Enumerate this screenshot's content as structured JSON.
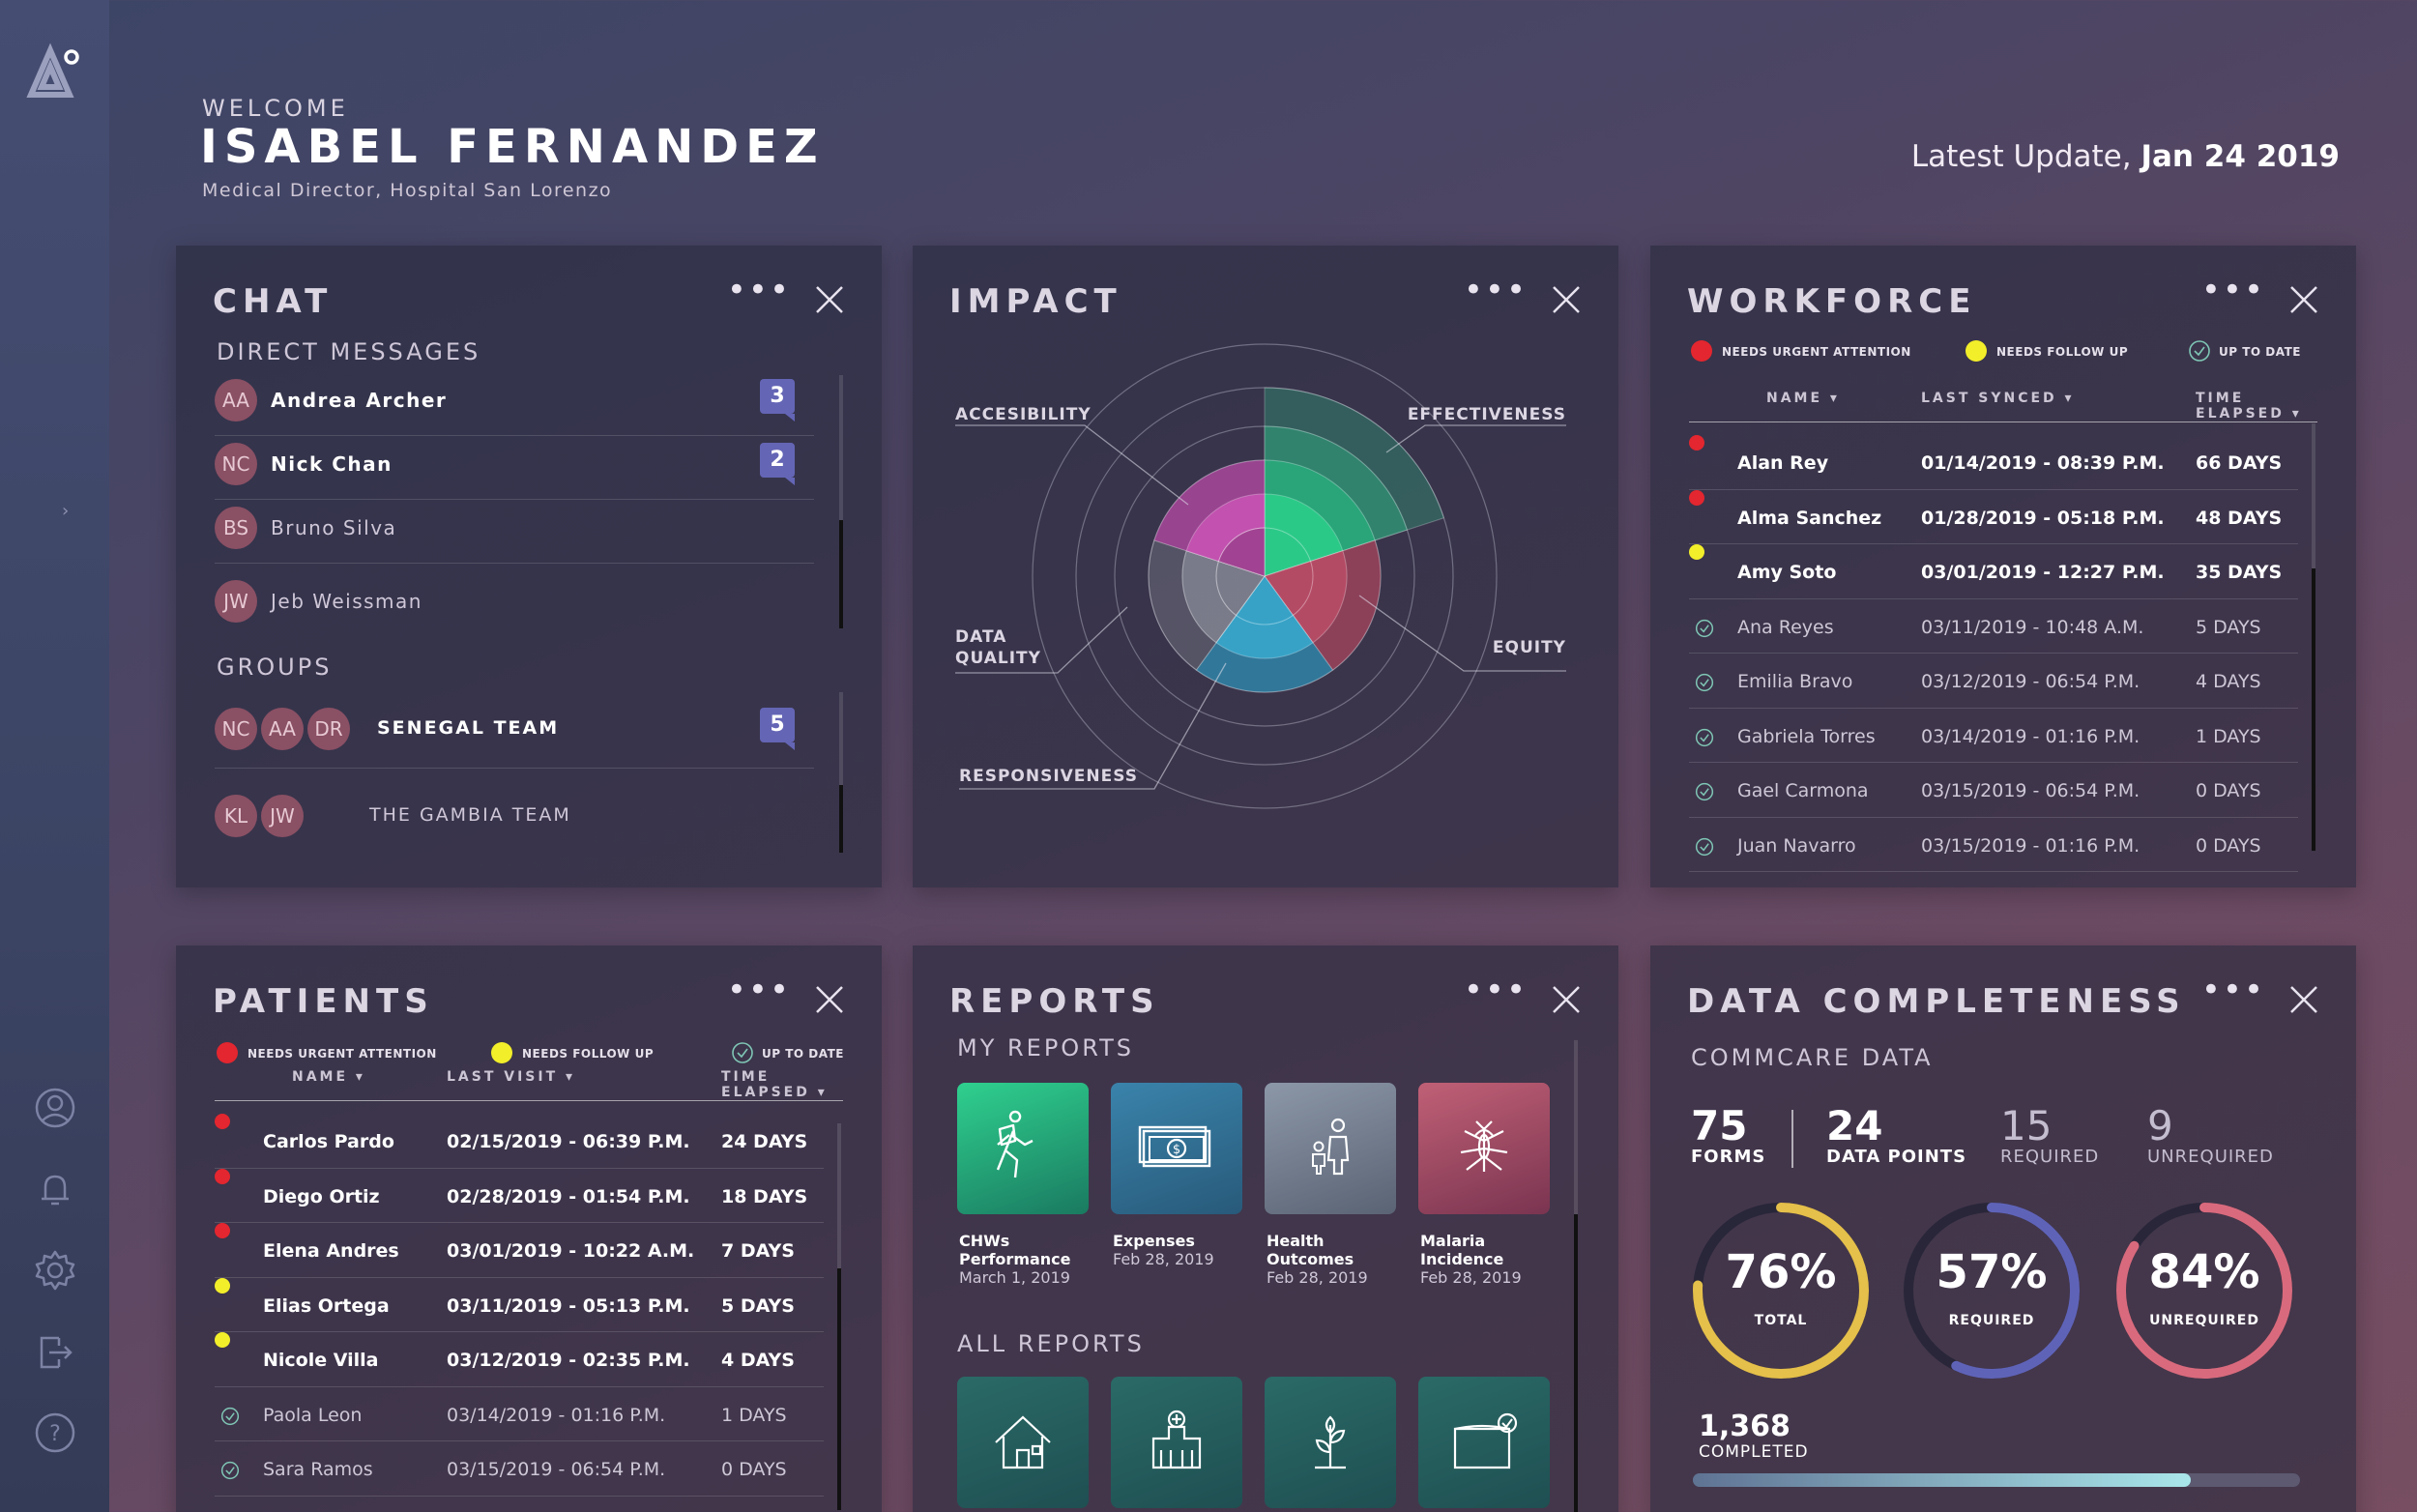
{
  "header": {
    "welcome": "WELCOME",
    "name": "ISABEL FERNANDEZ",
    "role": "Medical Director, Hospital San Lorenzo",
    "update_label": "Latest Update,",
    "update_date": "Jan 24 2019"
  },
  "chat": {
    "title": "CHAT",
    "direct_label": "DIRECT MESSAGES",
    "groups_label": "GROUPS",
    "direct": [
      {
        "initials": "AA",
        "name": "Andrea Archer",
        "badge": "3",
        "unread": true
      },
      {
        "initials": "NC",
        "name": "Nick Chan",
        "badge": "2",
        "unread": true
      },
      {
        "initials": "BS",
        "name": "Bruno Silva",
        "badge": "",
        "unread": false
      },
      {
        "initials": "JW",
        "name": "Jeb Weissman",
        "badge": "",
        "unread": false
      }
    ],
    "groups": [
      {
        "initials": [
          "NC",
          "AA",
          "DR"
        ],
        "name": "SENEGAL TEAM",
        "badge": "5"
      },
      {
        "initials": [
          "KL",
          "JW"
        ],
        "name": "THE GAMBIA TEAM",
        "badge": ""
      }
    ]
  },
  "impact": {
    "title": "IMPACT",
    "labels": {
      "accessibility": "ACCESIBILITY",
      "effectiveness": "EFFECTIVENESS",
      "data_quality_1": "DATA",
      "data_quality_2": "QUALITY",
      "equity": "EQUITY",
      "responsiveness": "RESPONSIVENESS"
    },
    "colors": {
      "effectiveness": "#2fa27c",
      "accessibility": "#b048a0",
      "equity": "#a8465d",
      "responsiveness": "#2f8db3",
      "data_quality": "#8a8f99"
    }
  },
  "workforce": {
    "title": "WORKFORCE",
    "legend": [
      "NEEDS URGENT ATTENTION",
      "NEEDS FOLLOW UP",
      "UP TO DATE"
    ],
    "cols": [
      "NAME ▾",
      "LAST SYNCED ▾",
      "TIME ELAPSED ▾"
    ],
    "rows": [
      {
        "status": "urgent",
        "name": "Alan Rey",
        "date": "01/14/2019 - 08:39 P.M.",
        "elapsed": "66 DAYS"
      },
      {
        "status": "urgent",
        "name": "Alma Sanchez",
        "date": "01/28/2019 - 05:18 P.M.",
        "elapsed": "48 DAYS"
      },
      {
        "status": "follow",
        "name": "Amy Soto",
        "date": "03/01/2019 - 12:27 P.M.",
        "elapsed": "35 DAYS"
      },
      {
        "status": "ok",
        "name": "Ana Reyes",
        "date": "03/11/2019 - 10:48 A.M.",
        "elapsed": "5 DAYS"
      },
      {
        "status": "ok",
        "name": "Emilia Bravo",
        "date": "03/12/2019 - 06:54 P.M.",
        "elapsed": "4 DAYS"
      },
      {
        "status": "ok",
        "name": "Gabriela Torres",
        "date": "03/14/2019 - 01:16 P.M.",
        "elapsed": "1 DAYS"
      },
      {
        "status": "ok",
        "name": "Gael Carmona",
        "date": "03/15/2019 - 06:54 P.M.",
        "elapsed": "0 DAYS"
      },
      {
        "status": "ok",
        "name": "Juan Navarro",
        "date": "03/15/2019 - 01:16 P.M.",
        "elapsed": "0 DAYS"
      }
    ]
  },
  "patients": {
    "title": "PATIENTS",
    "legend": [
      "NEEDS URGENT ATTENTION",
      "NEEDS FOLLOW UP",
      "UP TO DATE"
    ],
    "cols": [
      "NAME ▾",
      "LAST VISIT ▾",
      "TIME ELAPSED ▾"
    ],
    "rows": [
      {
        "status": "urgent",
        "name": "Carlos Pardo",
        "date": "02/15/2019 - 06:39 P.M.",
        "elapsed": "24 DAYS"
      },
      {
        "status": "urgent",
        "name": "Diego Ortiz",
        "date": "02/28/2019 - 01:54 P.M.",
        "elapsed": "18 DAYS"
      },
      {
        "status": "urgent",
        "name": "Elena Andres",
        "date": "03/01/2019 - 10:22 A.M.",
        "elapsed": "7 DAYS"
      },
      {
        "status": "follow",
        "name": "Elias Ortega",
        "date": "03/11/2019 - 05:13 P.M.",
        "elapsed": "5 DAYS"
      },
      {
        "status": "follow",
        "name": "Nicole Villa",
        "date": "03/12/2019 - 02:35 P.M.",
        "elapsed": "4 DAYS"
      },
      {
        "status": "ok",
        "name": "Paola Leon",
        "date": "03/14/2019 - 01:16 P.M.",
        "elapsed": "1 DAYS"
      },
      {
        "status": "ok",
        "name": "Sara Ramos",
        "date": "03/15/2019 - 06:54 P.M.",
        "elapsed": "0 DAYS"
      }
    ]
  },
  "reports": {
    "title": "REPORTS",
    "my_label": "MY REPORTS",
    "all_label": "ALL REPORTS",
    "my": [
      {
        "name1": "CHWs",
        "name2": "Performance",
        "date": "March 1, 2019",
        "icon": "runner-icon"
      },
      {
        "name1": "Expenses",
        "name2": "",
        "date": "Feb 28, 2019",
        "icon": "money-icon"
      },
      {
        "name1": "Health",
        "name2": "Outcomes",
        "date": "Feb 28, 2019",
        "icon": "family-icon"
      },
      {
        "name1": "Malaria",
        "name2": "Incidence",
        "date": "Feb 28, 2019",
        "icon": "mosquito-icon"
      }
    ],
    "all_icons": [
      "house-icon",
      "hospital-icon",
      "plant-icon",
      "folder-check-icon"
    ]
  },
  "completeness": {
    "title": "DATA COMPLETENESS",
    "subtitle": "COMMCARE DATA",
    "metrics": [
      {
        "value": "75",
        "label": "FORMS"
      },
      {
        "value": "24",
        "label": "DATA POINTS"
      },
      {
        "value": "15",
        "label": "REQUIRED"
      },
      {
        "value": "9",
        "label": "UNREQUIRED"
      }
    ],
    "gauges": [
      {
        "pct": "76%",
        "label": "TOTAL",
        "fraction": 0.76,
        "color": "#e5c04a"
      },
      {
        "pct": "57%",
        "label": "REQUIRED",
        "fraction": 0.57,
        "color": "#5f63b8"
      },
      {
        "pct": "84%",
        "label": "UNREQUIRED",
        "fraction": 0.84,
        "color": "#d96a7d"
      }
    ],
    "completed_value": "1,368",
    "completed_label": "COMPLETED",
    "progress": 0.82
  },
  "colors": {
    "urgent": "#e3262f",
    "follow": "#f2ee2a",
    "ok": "#7fc6b5"
  }
}
